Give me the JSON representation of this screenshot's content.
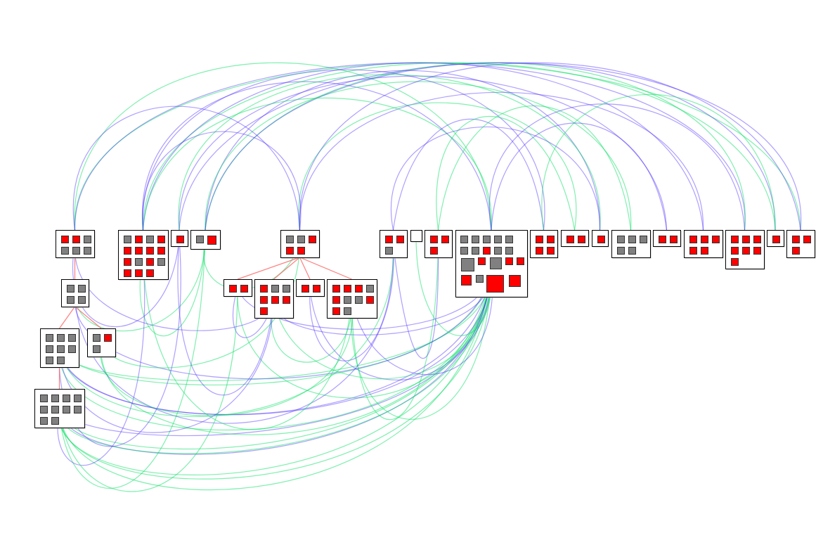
{
  "colors": {
    "active_node": "#ff0000",
    "inactive_node": "#808080",
    "edge_green": "#00e060",
    "edge_blue": "#4a2bff",
    "edge_red": "#ff6060",
    "group_border": "#000000"
  },
  "groups": [
    {
      "nodes": [
        "r",
        "r",
        "g",
        "g",
        "g",
        "g"
      ]
    },
    {
      "nodes": [
        "g",
        "r",
        "g",
        "r",
        "r",
        "r",
        "r",
        "r",
        "r",
        "g",
        "r",
        "g",
        "r",
        "r",
        "r"
      ]
    },
    {
      "nodes": [
        "r"
      ]
    },
    {
      "nodes": [
        "g",
        "R"
      ]
    },
    {
      "nodes": [
        "g",
        "g",
        "r",
        "r",
        "r"
      ]
    },
    {
      "nodes": [
        "g",
        "g",
        "g",
        "g"
      ]
    },
    {
      "nodes": [
        "g",
        "g",
        "g",
        "g",
        "g",
        "g",
        "g",
        "g"
      ]
    },
    {
      "nodes": [
        "g",
        "r",
        "g"
      ]
    },
    {
      "nodes": [
        "g",
        "g",
        "g",
        "g",
        "g",
        "g",
        "g",
        "g",
        "g",
        "g"
      ]
    },
    {
      "nodes": [
        "r",
        "r"
      ]
    },
    {
      "nodes": [
        "r",
        "g",
        "g",
        "r",
        "r",
        "r",
        "r"
      ]
    },
    {
      "nodes": [
        "r",
        "r"
      ]
    },
    {
      "nodes": [
        "r",
        "r",
        "r",
        "g",
        "r",
        "g",
        "g",
        "r",
        "r",
        "g"
      ]
    },
    {
      "nodes": [
        "r",
        "r",
        "g"
      ]
    },
    {
      "nodes": []
    },
    {
      "nodes": [
        "r",
        "r",
        "r"
      ]
    },
    {
      "nodes": [
        "g",
        "g",
        "g",
        "g",
        "g",
        "g",
        "g",
        "r",
        "g",
        "g",
        "G",
        "r",
        "G",
        "r",
        "r",
        "R",
        "g",
        "RR",
        "R"
      ]
    },
    {
      "nodes": [
        "r",
        "r",
        "r",
        "r"
      ]
    },
    {
      "nodes": [
        "r",
        "r"
      ]
    },
    {
      "nodes": [
        "r"
      ]
    },
    {
      "nodes": [
        "g",
        "g",
        "g",
        "g",
        "g"
      ]
    },
    {
      "nodes": [
        "r",
        "r"
      ]
    },
    {
      "nodes": [
        "r",
        "r",
        "r",
        "r",
        "r"
      ]
    },
    {
      "nodes": [
        "r",
        "r",
        "r",
        "r",
        "r",
        "r",
        "r"
      ]
    },
    {
      "nodes": [
        "r"
      ]
    },
    {
      "nodes": [
        "r",
        "r",
        "r"
      ]
    }
  ],
  "hierarchy_edges": [
    [
      0,
      5
    ],
    [
      5,
      6
    ],
    [
      5,
      7
    ],
    [
      6,
      8
    ],
    [
      4,
      9
    ],
    [
      4,
      10
    ],
    [
      4,
      11
    ],
    [
      4,
      12
    ]
  ],
  "edges": [
    [
      16,
      8,
      "g"
    ],
    [
      16,
      8,
      "b"
    ],
    [
      16,
      6,
      "g"
    ],
    [
      16,
      6,
      "b"
    ],
    [
      16,
      8,
      "g"
    ],
    [
      16,
      8,
      "g"
    ],
    [
      16,
      6,
      "g"
    ],
    [
      16,
      8,
      "b"
    ],
    [
      16,
      6,
      "g"
    ],
    [
      16,
      8,
      "g"
    ],
    [
      16,
      1,
      "b"
    ],
    [
      16,
      0,
      "g"
    ],
    [
      16,
      5,
      "b"
    ],
    [
      16,
      9,
      "g"
    ],
    [
      16,
      10,
      "b"
    ],
    [
      16,
      12,
      "g"
    ],
    [
      16,
      11,
      "b"
    ],
    [
      16,
      7,
      "g"
    ],
    [
      16,
      8,
      "g"
    ],
    [
      16,
      6,
      "b"
    ],
    [
      0,
      25,
      "g"
    ],
    [
      0,
      23,
      "b"
    ],
    [
      1,
      24,
      "g"
    ],
    [
      1,
      22,
      "b"
    ],
    [
      2,
      25,
      "b"
    ],
    [
      3,
      23,
      "g"
    ],
    [
      3,
      19,
      "b"
    ],
    [
      2,
      21,
      "b"
    ],
    [
      3,
      20,
      "g"
    ],
    [
      1,
      17,
      "b"
    ],
    [
      4,
      22,
      "b"
    ],
    [
      4,
      18,
      "g"
    ],
    [
      3,
      24,
      "b"
    ],
    [
      2,
      19,
      "g"
    ],
    [
      4,
      25,
      "b"
    ],
    [
      1,
      16,
      "g"
    ],
    [
      13,
      17,
      "b"
    ],
    [
      15,
      18,
      "g"
    ],
    [
      13,
      19,
      "b"
    ],
    [
      15,
      20,
      "g"
    ],
    [
      0,
      2,
      "b"
    ],
    [
      1,
      3,
      "g"
    ],
    [
      1,
      4,
      "b"
    ],
    [
      3,
      4,
      "g"
    ],
    [
      0,
      4,
      "b"
    ],
    [
      5,
      3,
      "g"
    ],
    [
      7,
      4,
      "g"
    ],
    [
      6,
      2,
      "b"
    ],
    [
      8,
      3,
      "g"
    ],
    [
      8,
      1,
      "b"
    ],
    [
      9,
      10,
      "b"
    ],
    [
      10,
      12,
      "g"
    ],
    [
      11,
      13,
      "b"
    ],
    [
      12,
      15,
      "g"
    ],
    [
      9,
      16,
      "b"
    ],
    [
      10,
      16,
      "g"
    ],
    [
      12,
      16,
      "b"
    ],
    [
      14,
      16,
      "g"
    ],
    [
      13,
      15,
      "b"
    ],
    [
      5,
      13,
      "b"
    ],
    [
      7,
      12,
      "g"
    ],
    [
      6,
      10,
      "b"
    ],
    [
      8,
      9,
      "g"
    ],
    [
      6,
      13,
      "g"
    ],
    [
      0,
      10,
      "b"
    ],
    [
      1,
      12,
      "g"
    ],
    [
      2,
      10,
      "b"
    ],
    [
      23,
      16,
      "b"
    ],
    [
      24,
      17,
      "g"
    ],
    [
      21,
      16,
      "b"
    ]
  ]
}
